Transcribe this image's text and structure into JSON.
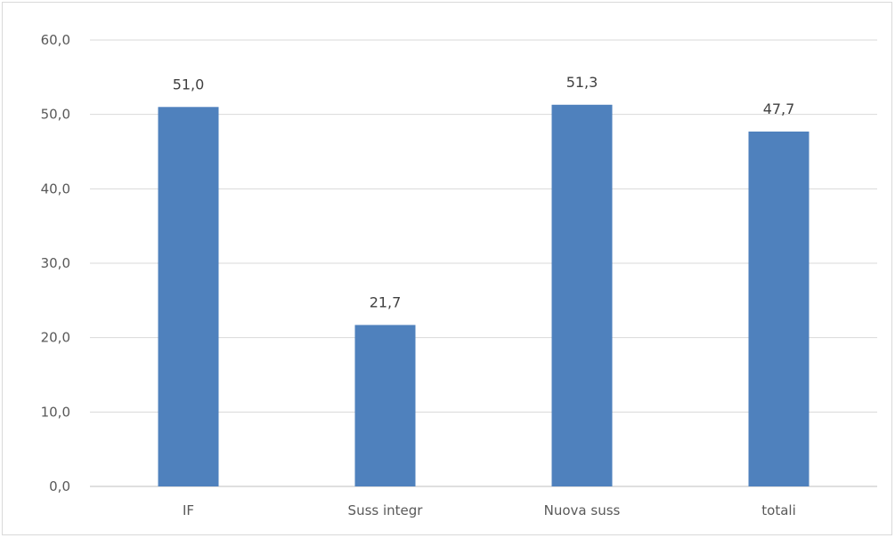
{
  "chart_data": {
    "type": "bar",
    "categories": [
      "IF",
      "Suss integr",
      "Nuova suss",
      "totali"
    ],
    "values": [
      51.0,
      21.7,
      51.3,
      47.7
    ],
    "data_labels": [
      "51,0",
      "21,7",
      "51,3",
      "47,7"
    ],
    "y_ticks": [
      "0,0",
      "10,0",
      "20,0",
      "30,0",
      "40,0",
      "50,0",
      "60,0"
    ],
    "y_tick_values": [
      0,
      10,
      20,
      30,
      40,
      50,
      60
    ],
    "ylim": [
      0,
      60
    ],
    "grid": true,
    "legend": "none",
    "title": "",
    "xlabel": "",
    "ylabel": "",
    "bar_color": "#4f81bd",
    "grid_color": "#d9d9d9"
  }
}
